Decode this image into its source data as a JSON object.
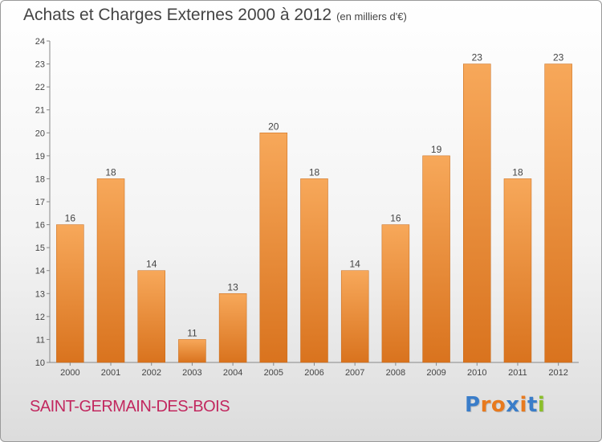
{
  "title": "Achats et Charges Externes 2000 à 2012",
  "subtitle": "(en milliers d'€)",
  "commune": "SAINT-GERMAIN-DES-BOIS",
  "logo": "Proxiti",
  "colors": {
    "bar_top": "#f7a85a",
    "bar_bottom": "#d9731e",
    "commune_text": "#c2285f",
    "logo_letters": [
      "#3a7dc9",
      "#e87a1e",
      "#e87a1e",
      "#3a7dc9",
      "#e87a1e",
      "#3a7dc9",
      "#8bbf2a"
    ]
  },
  "chart_data": {
    "type": "bar",
    "title": "Achats et Charges Externes 2000 à 2012",
    "subtitle": "(en milliers d'€)",
    "categories": [
      "2000",
      "2001",
      "2002",
      "2003",
      "2004",
      "2005",
      "2006",
      "2007",
      "2008",
      "2009",
      "2010",
      "2011",
      "2012"
    ],
    "values": [
      16,
      18,
      14,
      11,
      13,
      20,
      18,
      14,
      16,
      19,
      23,
      18,
      23
    ],
    "ylim": [
      10,
      24
    ],
    "yticks": [
      10,
      11,
      12,
      13,
      14,
      15,
      16,
      17,
      18,
      19,
      20,
      21,
      22,
      23,
      24
    ],
    "grid": false,
    "data_labels": true
  }
}
